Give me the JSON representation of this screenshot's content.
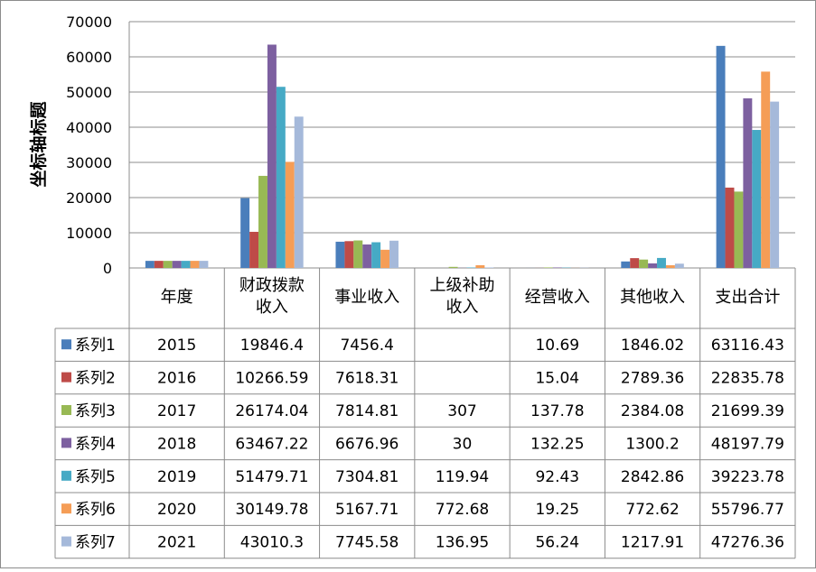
{
  "chart_data": {
    "type": "bar",
    "ylabel": "坐标轴标题",
    "ylim": [
      0,
      70000
    ],
    "y_ticks": [
      0,
      10000,
      20000,
      30000,
      40000,
      50000,
      60000,
      70000
    ],
    "y_tick_labels": [
      "0",
      "10000",
      "20000",
      "30000",
      "40000",
      "50000",
      "60000",
      "70000"
    ],
    "grid": true,
    "legend": "data-table",
    "categories": [
      "年度",
      "财政拨款收入",
      "事业收入",
      "上级补助收入",
      "经营收入",
      "其他收入",
      "支出合计"
    ],
    "category_label_lines": [
      [
        "年度"
      ],
      [
        "财政拨款",
        "收入"
      ],
      [
        "事业收入"
      ],
      [
        "上级补助",
        "收入"
      ],
      [
        "经营收入"
      ],
      [
        "其他收入"
      ],
      [
        "支出合计"
      ]
    ],
    "series": [
      {
        "name": "系列1",
        "color": "#4A7EBB",
        "values": [
          2015,
          19846.4,
          7456.4,
          null,
          10.69,
          1846.02,
          63116.43
        ],
        "labels": [
          "2015",
          "19846.4",
          "7456.4",
          "",
          "10.69",
          "1846.02",
          "63116.43"
        ]
      },
      {
        "name": "系列2",
        "color": "#BE4B48",
        "values": [
          2016,
          10266.59,
          7618.31,
          null,
          15.04,
          2789.36,
          22835.78
        ],
        "labels": [
          "2016",
          "10266.59",
          "7618.31",
          "",
          "15.04",
          "2789.36",
          "22835.78"
        ]
      },
      {
        "name": "系列3",
        "color": "#98B954",
        "values": [
          2017,
          26174.04,
          7814.81,
          307,
          137.78,
          2384.08,
          21699.39
        ],
        "labels": [
          "2017",
          "26174.04",
          "7814.81",
          "307",
          "137.78",
          "2384.08",
          "21699.39"
        ]
      },
      {
        "name": "系列4",
        "color": "#7D60A0",
        "values": [
          2018,
          63467.22,
          6676.96,
          30,
          132.25,
          1300.2,
          48197.79
        ],
        "labels": [
          "2018",
          "63467.22",
          "6676.96",
          "30",
          "132.25",
          "1300.2",
          "48197.79"
        ]
      },
      {
        "name": "系列5",
        "color": "#46AAC5",
        "values": [
          2019,
          51479.71,
          7304.81,
          119.94,
          92.43,
          2842.86,
          39223.78
        ],
        "labels": [
          "2019",
          "51479.71",
          "7304.81",
          "119.94",
          "92.43",
          "2842.86",
          "39223.78"
        ]
      },
      {
        "name": "系列6",
        "color": "#F59D56",
        "values": [
          2020,
          30149.78,
          5167.71,
          772.68,
          19.25,
          772.62,
          55796.77
        ],
        "labels": [
          "2020",
          "30149.78",
          "5167.71",
          "772.68",
          "19.25",
          "772.62",
          "55796.77"
        ]
      },
      {
        "name": "系列7",
        "color": "#A5B9DA",
        "values": [
          2021,
          43010.3,
          7745.58,
          136.95,
          56.24,
          1217.91,
          47276.36
        ],
        "labels": [
          "2021",
          "43010.3",
          "7745.58",
          "136.95",
          "56.24",
          "1217.91",
          "47276.36"
        ]
      }
    ]
  }
}
